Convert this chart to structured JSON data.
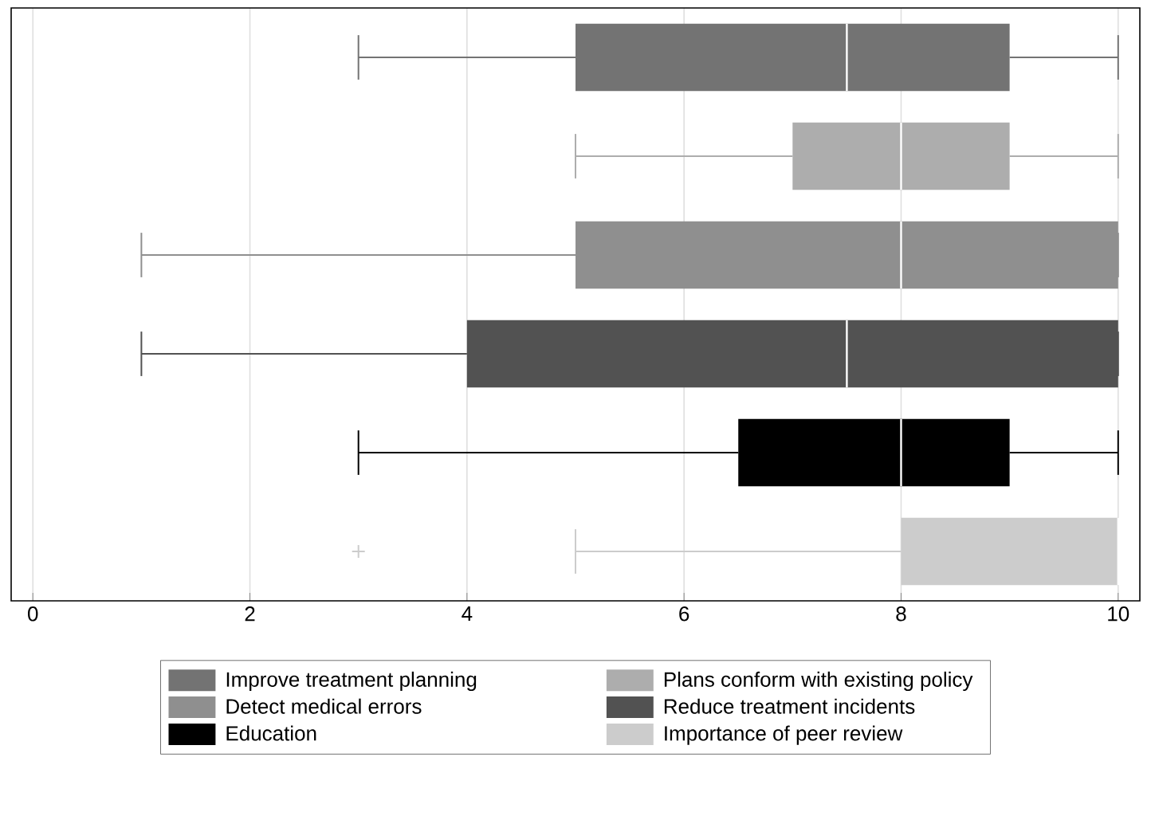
{
  "chart_data": {
    "type": "box",
    "orientation": "horizontal",
    "categories": [
      null,
      null,
      null,
      null,
      null,
      null
    ],
    "xlim": [
      -0.2,
      10.2
    ],
    "xticks": [
      0,
      2,
      4,
      6,
      8,
      10
    ],
    "grid": "x",
    "legend": "bottom",
    "series": [
      {
        "name": "Improve treatment planning",
        "color": "#737373",
        "boxes": [
          {
            "low": 3,
            "q1": 5,
            "median": 7.5,
            "q3": 9,
            "high": 10
          },
          null,
          null,
          null,
          null,
          null
        ]
      },
      {
        "name": "Plans conform with existing policy",
        "color": "#adadad",
        "boxes": [
          null,
          {
            "low": 5,
            "q1": 7,
            "median": 8,
            "q3": 9,
            "high": 10
          },
          null,
          null,
          null,
          null
        ]
      },
      {
        "name": "Detect medical errors",
        "color": "#8f8f8f",
        "boxes": [
          null,
          null,
          {
            "low": 1,
            "q1": 5,
            "median": 8,
            "q3": 10,
            "high": 10
          },
          null,
          null,
          null
        ]
      },
      {
        "name": "Reduce treatment incidents",
        "color": "#525252",
        "boxes": [
          null,
          null,
          null,
          {
            "low": 1,
            "q1": 4,
            "median": 7.5,
            "q3": 10,
            "high": 10
          },
          null,
          null
        ]
      },
      {
        "name": "Education",
        "color": "#000000",
        "boxes": [
          null,
          null,
          null,
          null,
          {
            "low": 3,
            "q1": 6.5,
            "median": 8,
            "q3": 9,
            "high": 10
          },
          null
        ]
      },
      {
        "name": "Importance of peer review",
        "color": "#cccccc",
        "boxes": [
          null,
          null,
          null,
          null,
          null,
          {
            "low": 5,
            "q1": 8,
            "median": 10,
            "q3": 10,
            "high": 10,
            "outliers": [
              3
            ]
          }
        ]
      }
    ]
  }
}
